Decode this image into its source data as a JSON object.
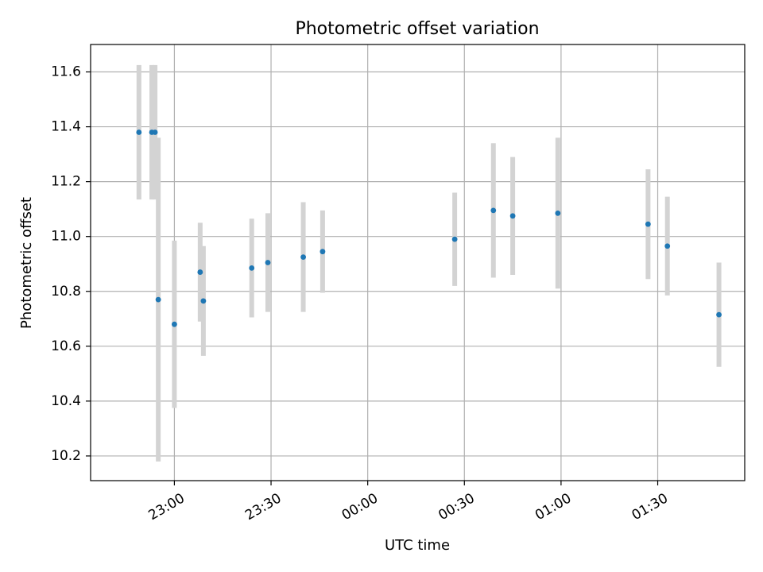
{
  "chart_data": {
    "type": "scatter",
    "title": "Photometric offset variation",
    "xlabel": "UTC time",
    "ylabel": "Photometric offset",
    "x_axis_type": "time",
    "x_range": [
      "22:34",
      "01:57"
    ],
    "ylim": [
      10.11,
      11.7
    ],
    "grid": true,
    "legend": "none",
    "x_ticks": [
      "23:00",
      "23:30",
      "00:00",
      "00:30",
      "01:00",
      "01:30"
    ],
    "y_ticks": [
      "10.2",
      "10.4",
      "10.6",
      "10.8",
      "11.0",
      "11.2",
      "11.4",
      "11.6"
    ],
    "colors": {
      "marker": "#1f77b4",
      "errorbar": "#d3d3d3",
      "grid": "#b0b0b0"
    },
    "points": [
      {
        "time": "22:49",
        "y": 11.38,
        "err": 0.245
      },
      {
        "time": "22:53",
        "y": 11.38,
        "err": 0.245
      },
      {
        "time": "22:54",
        "y": 11.38,
        "err": 0.245
      },
      {
        "time": "22:55",
        "y": 10.77,
        "err": 0.59
      },
      {
        "time": "23:00",
        "y": 10.68,
        "err": 0.305
      },
      {
        "time": "23:08",
        "y": 10.87,
        "err": 0.18
      },
      {
        "time": "23:09",
        "y": 10.765,
        "err": 0.2
      },
      {
        "time": "23:24",
        "y": 10.885,
        "err": 0.18
      },
      {
        "time": "23:29",
        "y": 10.905,
        "err": 0.18
      },
      {
        "time": "23:40",
        "y": 10.925,
        "err": 0.2
      },
      {
        "time": "23:46",
        "y": 10.945,
        "err": 0.15
      },
      {
        "time": "00:27",
        "y": 10.99,
        "err": 0.17
      },
      {
        "time": "00:39",
        "y": 11.095,
        "err": 0.245
      },
      {
        "time": "00:45",
        "y": 11.075,
        "err": 0.215
      },
      {
        "time": "00:59",
        "y": 11.085,
        "err": 0.275
      },
      {
        "time": "01:27",
        "y": 11.045,
        "err": 0.2
      },
      {
        "time": "01:33",
        "y": 10.965,
        "err": 0.18
      },
      {
        "time": "01:49",
        "y": 10.715,
        "err": 0.19
      }
    ]
  }
}
